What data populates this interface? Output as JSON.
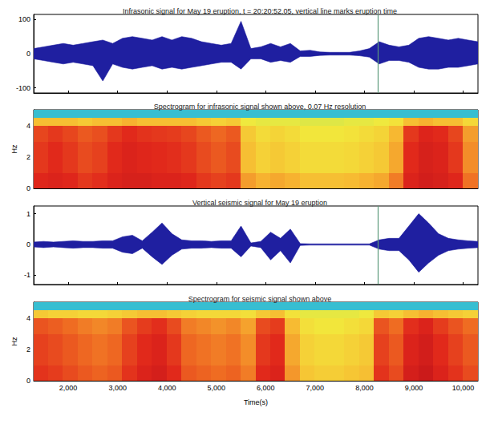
{
  "chart_data": [
    {
      "type": "area",
      "title": "Infrasonic signal for May 19 eruption, t = 20:20:52.05, vertical line marks eruption time",
      "color": "#1f1fa0",
      "xlim": [
        1300,
        10300
      ],
      "xticks": [
        2000,
        3000,
        4000,
        5000,
        6000,
        7000,
        8000,
        9000,
        10000
      ],
      "ylim": [
        -115,
        115
      ],
      "yticks": [
        -100,
        0,
        100
      ],
      "tick_labels": "y",
      "grid": false,
      "eruption_time": 8270,
      "x": [
        1300,
        1500,
        1700,
        1900,
        2100,
        2300,
        2500,
        2700,
        2900,
        3100,
        3300,
        3500,
        3700,
        3900,
        4100,
        4300,
        4500,
        4700,
        4900,
        5100,
        5300,
        5500,
        5700,
        5900,
        6100,
        6300,
        6500,
        6700,
        6900,
        7100,
        7300,
        7500,
        7700,
        7900,
        8100,
        8300,
        8500,
        8700,
        8900,
        9100,
        9300,
        9500,
        9700,
        9900,
        10100,
        10300
      ],
      "upper": [
        15,
        20,
        25,
        30,
        25,
        30,
        35,
        40,
        30,
        45,
        50,
        45,
        40,
        50,
        40,
        50,
        45,
        35,
        30,
        25,
        30,
        95,
        15,
        20,
        30,
        20,
        30,
        8,
        10,
        5,
        4,
        4,
        4,
        8,
        15,
        35,
        25,
        20,
        25,
        45,
        50,
        45,
        40,
        45,
        40,
        35
      ],
      "lower": [
        -15,
        -20,
        -25,
        -30,
        -25,
        -30,
        -35,
        -80,
        -30,
        -40,
        -45,
        -40,
        -35,
        -45,
        -40,
        -45,
        -40,
        -35,
        -30,
        -25,
        -25,
        -45,
        -15,
        -15,
        -25,
        -20,
        -25,
        -8,
        -8,
        -5,
        -4,
        -4,
        -4,
        -6,
        -10,
        -30,
        -20,
        -20,
        -25,
        -40,
        -45,
        -45,
        -40,
        -40,
        -35,
        -30
      ]
    },
    {
      "type": "heatmap",
      "title": "Spectrogram for infrasonic signal shown above, 0.07 Hz resolution",
      "ylabel": "Hz",
      "xlim": [
        1300,
        10300
      ],
      "xticks": [
        2000,
        3000,
        4000,
        5000,
        6000,
        7000,
        8000,
        9000,
        10000
      ],
      "ylim": [
        0,
        5
      ],
      "yticks": [
        0,
        2,
        4
      ],
      "tick_labels": "y",
      "grid": false,
      "vlim": [
        0,
        1
      ],
      "time_edges": [
        1300,
        1600,
        1900,
        2200,
        2500,
        2800,
        3100,
        3400,
        3700,
        4000,
        4300,
        4600,
        4900,
        5200,
        5500,
        5800,
        6100,
        6400,
        6700,
        7000,
        7300,
        7600,
        7900,
        8200,
        8500,
        8800,
        9100,
        9400,
        9700,
        10000,
        10300
      ],
      "freq_edges": [
        0,
        1,
        2,
        3,
        4,
        4.5,
        5
      ],
      "power": [
        [
          0.86,
          0.88,
          0.86,
          0.82,
          0.84,
          0.88,
          0.9,
          0.9,
          0.88,
          0.88,
          0.86,
          0.82,
          0.8,
          0.82,
          0.62,
          0.58,
          0.6,
          0.58,
          0.55,
          0.55,
          0.55,
          0.56,
          0.58,
          0.6,
          0.68,
          0.88,
          0.92,
          0.9,
          0.86,
          0.7
        ],
        [
          0.82,
          0.85,
          0.82,
          0.78,
          0.8,
          0.85,
          0.88,
          0.86,
          0.85,
          0.84,
          0.82,
          0.78,
          0.75,
          0.78,
          0.55,
          0.5,
          0.52,
          0.5,
          0.47,
          0.47,
          0.47,
          0.48,
          0.5,
          0.52,
          0.6,
          0.85,
          0.9,
          0.88,
          0.82,
          0.65
        ],
        [
          0.82,
          0.85,
          0.82,
          0.78,
          0.8,
          0.85,
          0.88,
          0.86,
          0.85,
          0.84,
          0.82,
          0.78,
          0.75,
          0.78,
          0.55,
          0.5,
          0.52,
          0.5,
          0.47,
          0.47,
          0.47,
          0.48,
          0.5,
          0.52,
          0.6,
          0.85,
          0.9,
          0.88,
          0.82,
          0.65
        ],
        [
          0.79,
          0.82,
          0.79,
          0.75,
          0.77,
          0.82,
          0.85,
          0.83,
          0.82,
          0.81,
          0.79,
          0.75,
          0.72,
          0.75,
          0.52,
          0.47,
          0.49,
          0.47,
          0.44,
          0.44,
          0.44,
          0.45,
          0.47,
          0.49,
          0.57,
          0.82,
          0.87,
          0.85,
          0.79,
          0.62
        ],
        [
          0.55,
          0.55,
          0.55,
          0.52,
          0.55,
          0.55,
          0.58,
          0.55,
          0.55,
          0.55,
          0.55,
          0.52,
          0.5,
          0.52,
          0.42,
          0.4,
          0.4,
          0.4,
          0.38,
          0.38,
          0.38,
          0.4,
          0.4,
          0.42,
          0.45,
          0.55,
          0.58,
          0.55,
          0.55,
          0.48
        ],
        [
          0.12,
          0.12,
          0.12,
          0.12,
          0.12,
          0.12,
          0.12,
          0.12,
          0.12,
          0.12,
          0.12,
          0.12,
          0.12,
          0.12,
          0.12,
          0.12,
          0.12,
          0.12,
          0.12,
          0.12,
          0.12,
          0.12,
          0.12,
          0.12,
          0.12,
          0.12,
          0.12,
          0.12,
          0.12,
          0.12
        ]
      ]
    },
    {
      "type": "area",
      "title": "Vertical seismic signal for May 19 eruption",
      "color": "#1f1fa0",
      "xlim": [
        1300,
        10300
      ],
      "xticks": [
        2000,
        3000,
        4000,
        5000,
        6000,
        7000,
        8000,
        9000,
        10000
      ],
      "ylim": [
        -1.3,
        1.25
      ],
      "yticks": [
        -1,
        0,
        1
      ],
      "tick_labels": "y",
      "grid": false,
      "eruption_time": 8270,
      "x": [
        1300,
        1500,
        1700,
        1900,
        2100,
        2300,
        2500,
        2700,
        2900,
        3100,
        3300,
        3500,
        3700,
        3900,
        4100,
        4300,
        4500,
        4700,
        4900,
        5100,
        5300,
        5500,
        5700,
        5900,
        6100,
        6300,
        6500,
        6700,
        6900,
        7100,
        7300,
        7500,
        7700,
        7900,
        8100,
        8300,
        8500,
        8700,
        8900,
        9100,
        9300,
        9500,
        9700,
        9900,
        10100,
        10300
      ],
      "upper": [
        0.08,
        0.1,
        0.08,
        0.1,
        0.12,
        0.1,
        0.1,
        0.12,
        0.12,
        0.25,
        0.3,
        0.12,
        0.4,
        0.7,
        0.35,
        0.15,
        0.12,
        0.12,
        0.1,
        0.12,
        0.12,
        0.6,
        0.05,
        0.1,
        0.4,
        0.2,
        0.5,
        0.03,
        0.02,
        0.02,
        0.02,
        0.02,
        0.02,
        0.02,
        0.02,
        0.15,
        0.2,
        0.2,
        0.6,
        1.0,
        0.7,
        0.35,
        0.2,
        0.15,
        0.12,
        0.1
      ],
      "lower": [
        -0.08,
        -0.1,
        -0.08,
        -0.1,
        -0.12,
        -0.1,
        -0.1,
        -0.12,
        -0.12,
        -0.25,
        -0.3,
        -0.12,
        -0.4,
        -0.65,
        -0.35,
        -0.15,
        -0.12,
        -0.12,
        -0.1,
        -0.12,
        -0.12,
        -0.4,
        -0.05,
        -0.1,
        -0.5,
        -0.2,
        -0.6,
        -0.03,
        -0.02,
        -0.02,
        -0.02,
        -0.02,
        -0.02,
        -0.02,
        -0.02,
        -0.15,
        -0.2,
        -0.2,
        -0.5,
        -0.9,
        -0.6,
        -0.35,
        -0.2,
        -0.15,
        -0.12,
        -0.1
      ]
    },
    {
      "type": "heatmap",
      "title": "Spectrogram for seismic signal shown above",
      "ylabel": "Hz",
      "xlabel": "Time(s)",
      "xlim": [
        1300,
        10300
      ],
      "xticks": [
        2000,
        3000,
        4000,
        5000,
        6000,
        7000,
        8000,
        9000,
        10000
      ],
      "ylim": [
        0,
        5
      ],
      "yticks": [
        0,
        2,
        4
      ],
      "tick_labels": true,
      "grid": false,
      "vlim": [
        0,
        1
      ],
      "time_edges": [
        1300,
        1600,
        1900,
        2200,
        2500,
        2800,
        3100,
        3400,
        3700,
        4000,
        4300,
        4600,
        4900,
        5200,
        5500,
        5800,
        6100,
        6400,
        6700,
        7000,
        7300,
        7600,
        7900,
        8200,
        8500,
        8800,
        9100,
        9400,
        9700,
        10000,
        10300
      ],
      "freq_edges": [
        0,
        1,
        2,
        3,
        4,
        4.5,
        5
      ],
      "power": [
        [
          0.83,
          0.81,
          0.78,
          0.75,
          0.73,
          0.75,
          0.83,
          0.88,
          0.91,
          0.85,
          0.75,
          0.73,
          0.71,
          0.73,
          0.68,
          0.85,
          0.88,
          0.63,
          0.53,
          0.51,
          0.51,
          0.53,
          0.55,
          0.83,
          0.78,
          0.91,
          0.95,
          0.88,
          0.83,
          0.78
        ],
        [
          0.8,
          0.78,
          0.75,
          0.72,
          0.7,
          0.72,
          0.8,
          0.85,
          0.88,
          0.82,
          0.72,
          0.7,
          0.68,
          0.7,
          0.65,
          0.82,
          0.85,
          0.6,
          0.5,
          0.48,
          0.48,
          0.5,
          0.52,
          0.8,
          0.75,
          0.88,
          0.92,
          0.85,
          0.8,
          0.75
        ],
        [
          0.8,
          0.78,
          0.75,
          0.72,
          0.7,
          0.72,
          0.8,
          0.85,
          0.88,
          0.82,
          0.72,
          0.7,
          0.68,
          0.7,
          0.65,
          0.82,
          0.85,
          0.6,
          0.5,
          0.48,
          0.48,
          0.5,
          0.52,
          0.8,
          0.75,
          0.88,
          0.92,
          0.85,
          0.8,
          0.75
        ],
        [
          0.76,
          0.74,
          0.71,
          0.68,
          0.66,
          0.68,
          0.76,
          0.81,
          0.84,
          0.78,
          0.68,
          0.66,
          0.64,
          0.66,
          0.61,
          0.78,
          0.81,
          0.56,
          0.46,
          0.44,
          0.44,
          0.46,
          0.48,
          0.76,
          0.71,
          0.84,
          0.88,
          0.81,
          0.76,
          0.71
        ],
        [
          0.52,
          0.5,
          0.5,
          0.48,
          0.48,
          0.5,
          0.52,
          0.55,
          0.55,
          0.52,
          0.5,
          0.48,
          0.48,
          0.48,
          0.46,
          0.52,
          0.55,
          0.45,
          0.4,
          0.4,
          0.4,
          0.4,
          0.42,
          0.52,
          0.5,
          0.55,
          0.58,
          0.55,
          0.52,
          0.5
        ],
        [
          0.12,
          0.12,
          0.12,
          0.12,
          0.12,
          0.12,
          0.12,
          0.12,
          0.12,
          0.12,
          0.12,
          0.12,
          0.12,
          0.12,
          0.12,
          0.12,
          0.12,
          0.12,
          0.12,
          0.12,
          0.12,
          0.12,
          0.12,
          0.12,
          0.12,
          0.12,
          0.12,
          0.12,
          0.12,
          0.12
        ]
      ]
    }
  ]
}
